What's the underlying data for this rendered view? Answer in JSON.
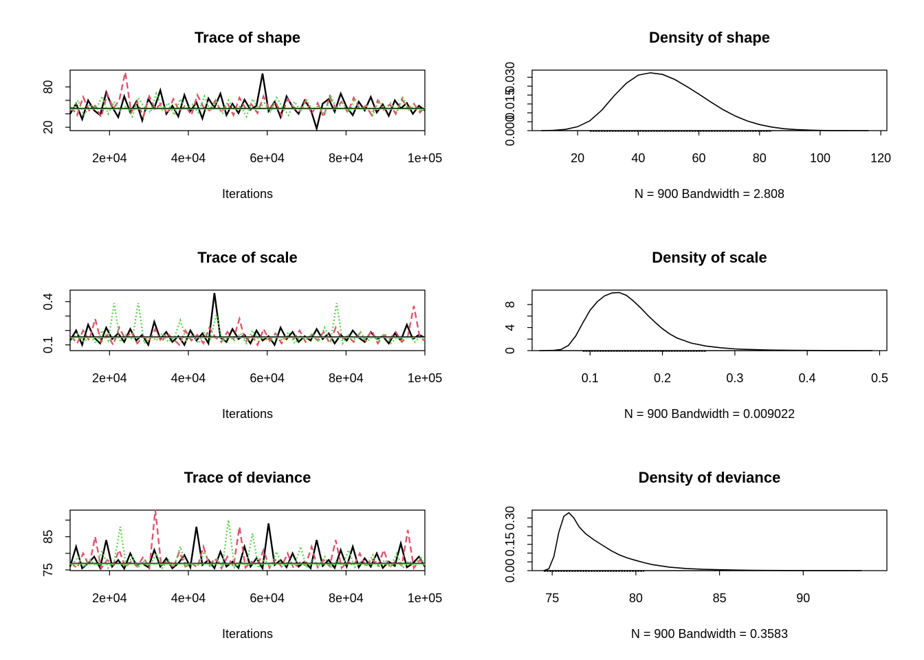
{
  "chart_data": [
    {
      "type": "line",
      "title": "Trace of shape",
      "xlabel": "Iterations",
      "xlim": [
        10000,
        100000
      ],
      "ylim": [
        15,
        105
      ],
      "xticks": [
        20000,
        40000,
        60000,
        80000,
        100000
      ],
      "xtick_labels": [
        "2e+04",
        "4e+04",
        "6e+04",
        "8e+04",
        "1e+05"
      ],
      "yticks": [
        20,
        40,
        60,
        80
      ],
      "ytick_labels": [
        "20",
        "",
        "",
        "80"
      ],
      "mean": 48,
      "series": [
        {
          "color": "#000000",
          "style": "solid",
          "values": [
            40,
            55,
            32,
            60,
            45,
            38,
            72,
            50,
            35,
            66,
            42,
            58,
            30,
            62,
            48,
            75,
            40,
            52,
            36,
            68,
            44,
            57,
            33,
            63,
            49,
            70,
            38,
            55,
            41,
            61,
            46,
            52,
            100,
            44,
            58,
            35,
            66,
            50,
            40,
            60,
            47,
            18,
            55,
            62,
            43,
            70,
            50,
            38,
            58,
            45,
            65,
            42,
            54,
            37,
            60,
            48,
            56,
            40,
            52,
            45
          ]
        },
        {
          "color": "#DF536B",
          "style": "dashed",
          "values": [
            50,
            38,
            65,
            45,
            52,
            35,
            70,
            48,
            60,
            102,
            42,
            58,
            36,
            66,
            47,
            55,
            40,
            62,
            44,
            52,
            38,
            68,
            50,
            45,
            60,
            42,
            56,
            38,
            64,
            48,
            54,
            41,
            66,
            46,
            58,
            37,
            62,
            50,
            44,
            60,
            40,
            56,
            35,
            66,
            48,
            58,
            42,
            64,
            46,
            52,
            38,
            60,
            46,
            54,
            40,
            62,
            48,
            55,
            42,
            50
          ]
        },
        {
          "color": "#61D04F",
          "style": "dotted",
          "values": [
            45,
            60,
            38,
            54,
            48,
            66,
            40,
            58,
            44,
            52,
            36,
            64,
            50,
            42,
            70,
            46,
            56,
            38,
            62,
            48,
            54,
            42,
            66,
            44,
            58,
            40,
            60,
            46,
            52,
            36,
            62,
            48,
            56,
            42,
            64,
            50,
            38,
            58,
            44,
            60,
            46,
            52,
            40,
            66,
            48,
            56,
            42,
            62,
            46,
            54,
            38,
            60,
            48,
            56,
            42,
            64,
            46,
            52,
            44,
            50
          ]
        }
      ]
    },
    {
      "type": "area",
      "title": "Density of shape",
      "xlabel": "N = 900   Bandwidth = 2.808",
      "xlim": [
        5,
        122
      ],
      "ylim": [
        0,
        0.034
      ],
      "xticks": [
        20,
        40,
        60,
        80,
        100,
        120
      ],
      "xtick_labels": [
        "20",
        "40",
        "60",
        "80",
        "100",
        "120"
      ],
      "yticks": [
        0,
        0.005,
        0.01,
        0.015,
        0.02,
        0.025,
        0.03
      ],
      "ytick_labels": [
        "0.000",
        "",
        "",
        "0.015",
        "",
        "",
        "0.030"
      ],
      "x": [
        8,
        12,
        16,
        20,
        24,
        28,
        32,
        36,
        40,
        44,
        48,
        52,
        56,
        60,
        64,
        68,
        72,
        76,
        80,
        84,
        88,
        92,
        96,
        100,
        104,
        108,
        112,
        116
      ],
      "values": [
        0,
        0.0002,
        0.0007,
        0.0022,
        0.0055,
        0.0115,
        0.0195,
        0.0265,
        0.0312,
        0.0325,
        0.0316,
        0.0288,
        0.0248,
        0.0205,
        0.016,
        0.0118,
        0.0082,
        0.0054,
        0.0034,
        0.002,
        0.0011,
        0.0006,
        0.0003,
        0.0001,
        5e-05,
        2e-05,
        1e-05,
        0
      ]
    },
    {
      "type": "line",
      "title": "Trace of scale",
      "xlabel": "Iterations",
      "xlim": [
        10000,
        100000
      ],
      "ylim": [
        0.06,
        0.48
      ],
      "xticks": [
        20000,
        40000,
        60000,
        80000,
        100000
      ],
      "xtick_labels": [
        "2e+04",
        "4e+04",
        "6e+04",
        "8e+04",
        "1e+05"
      ],
      "yticks": [
        0.1,
        0.2,
        0.3,
        0.4
      ],
      "ytick_labels": [
        "0.1",
        "",
        "",
        "0.4"
      ],
      "mean": 0.155,
      "series": [
        {
          "color": "#000000",
          "style": "solid",
          "values": [
            0.13,
            0.2,
            0.1,
            0.24,
            0.15,
            0.11,
            0.22,
            0.14,
            0.18,
            0.12,
            0.21,
            0.13,
            0.17,
            0.1,
            0.26,
            0.14,
            0.19,
            0.12,
            0.16,
            0.1,
            0.2,
            0.13,
            0.18,
            0.11,
            0.46,
            0.15,
            0.12,
            0.21,
            0.14,
            0.17,
            0.11,
            0.2,
            0.13,
            0.16,
            0.1,
            0.22,
            0.14,
            0.19,
            0.12,
            0.16,
            0.13,
            0.21,
            0.14,
            0.18,
            0.11,
            0.17,
            0.13,
            0.2,
            0.15,
            0.12,
            0.19,
            0.14,
            0.16,
            0.11,
            0.18,
            0.13,
            0.24,
            0.14,
            0.17,
            0.15
          ]
        },
        {
          "color": "#DF536B",
          "style": "dashed",
          "values": [
            0.16,
            0.11,
            0.2,
            0.13,
            0.28,
            0.12,
            0.17,
            0.1,
            0.22,
            0.14,
            0.19,
            0.11,
            0.16,
            0.13,
            0.21,
            0.12,
            0.18,
            0.14,
            0.1,
            0.2,
            0.13,
            0.17,
            0.11,
            0.22,
            0.15,
            0.12,
            0.19,
            0.14,
            0.28,
            0.12,
            0.17,
            0.1,
            0.21,
            0.13,
            0.18,
            0.11,
            0.16,
            0.14,
            0.2,
            0.12,
            0.17,
            0.13,
            0.19,
            0.11,
            0.22,
            0.14,
            0.16,
            0.12,
            0.18,
            0.13,
            0.2,
            0.11,
            0.17,
            0.14,
            0.19,
            0.12,
            0.16,
            0.37,
            0.15,
            0.13
          ]
        },
        {
          "color": "#61D04F",
          "style": "dotted",
          "values": [
            0.14,
            0.18,
            0.12,
            0.16,
            0.11,
            0.2,
            0.13,
            0.39,
            0.12,
            0.17,
            0.14,
            0.39,
            0.11,
            0.16,
            0.13,
            0.18,
            0.12,
            0.15,
            0.27,
            0.13,
            0.17,
            0.11,
            0.19,
            0.14,
            0.31,
            0.12,
            0.16,
            0.13,
            0.18,
            0.11,
            0.2,
            0.14,
            0.15,
            0.12,
            0.17,
            0.13,
            0.19,
            0.11,
            0.16,
            0.14,
            0.18,
            0.12,
            0.22,
            0.13,
            0.39,
            0.11,
            0.17,
            0.14,
            0.19,
            0.12,
            0.16,
            0.13,
            0.18,
            0.11,
            0.15,
            0.14,
            0.17,
            0.12,
            0.16,
            0.14
          ]
        }
      ]
    },
    {
      "type": "area",
      "title": "Density of scale",
      "xlabel": "N = 900   Bandwidth = 0.009022",
      "xlim": [
        0.02,
        0.51
      ],
      "ylim": [
        0,
        10.5
      ],
      "xticks": [
        0.1,
        0.2,
        0.3,
        0.4,
        0.5
      ],
      "xtick_labels": [
        "0.1",
        "0.2",
        "0.3",
        "0.4",
        "0.5"
      ],
      "yticks": [
        0,
        2,
        4,
        6,
        8
      ],
      "ytick_labels": [
        "0",
        "",
        "4",
        "",
        "8"
      ],
      "x": [
        0.03,
        0.05,
        0.06,
        0.07,
        0.08,
        0.09,
        0.1,
        0.11,
        0.12,
        0.13,
        0.14,
        0.15,
        0.16,
        0.17,
        0.18,
        0.19,
        0.2,
        0.21,
        0.22,
        0.24,
        0.26,
        0.28,
        0.3,
        0.32,
        0.35,
        0.38,
        0.42,
        0.46,
        0.49
      ],
      "values": [
        0,
        0.05,
        0.2,
        0.9,
        2.5,
        4.8,
        7.0,
        8.5,
        9.5,
        10.0,
        10.1,
        9.6,
        8.6,
        7.4,
        6.1,
        4.9,
        3.8,
        2.9,
        2.2,
        1.3,
        0.8,
        0.5,
        0.3,
        0.2,
        0.1,
        0.05,
        0.02,
        0.01,
        0
      ]
    },
    {
      "type": "line",
      "title": "Trace of deviance",
      "xlabel": "Iterations",
      "xlim": [
        10000,
        100000
      ],
      "ylim": [
        74.8,
        93
      ],
      "xticks": [
        20000,
        40000,
        60000,
        80000,
        100000
      ],
      "xtick_labels": [
        "2e+04",
        "4e+04",
        "6e+04",
        "8e+04",
        "1e+05"
      ],
      "yticks": [
        75,
        80,
        85,
        90
      ],
      "ytick_labels": [
        "75",
        "",
        "85",
        ""
      ],
      "mean": 77,
      "series": [
        {
          "color": "#000000",
          "style": "solid",
          "values": [
            76,
            82,
            75.5,
            77,
            79,
            75.6,
            84,
            76,
            78,
            75.4,
            80,
            76.5,
            77,
            75.8,
            81,
            76,
            78.5,
            75.5,
            77,
            79.5,
            75.8,
            88,
            76.5,
            78,
            75.5,
            80.5,
            76,
            77.5,
            75.6,
            82,
            76,
            78.5,
            75.5,
            89,
            76.5,
            78,
            75.8,
            80,
            76,
            77.5,
            75.5,
            84,
            76.2,
            78,
            75.6,
            81,
            76,
            82,
            75.8,
            78.5,
            76,
            80,
            75.6,
            77.5,
            76.2,
            83,
            75.8,
            77,
            79,
            76
          ]
        },
        {
          "color": "#DF536B",
          "style": "dashed",
          "values": [
            77,
            75.6,
            80,
            76.2,
            85,
            75.5,
            78,
            76.5,
            81,
            75.8,
            77.5,
            76,
            79,
            75.5,
            93,
            76.2,
            78,
            75.6,
            80.5,
            76,
            77,
            75.8,
            82,
            76.5,
            78.5,
            75.5,
            79,
            76,
            88,
            75.7,
            77.5,
            76.3,
            81,
            75.6,
            78,
            76,
            80,
            75.5,
            77.2,
            76.4,
            82,
            75.8,
            78,
            76.1,
            84,
            75.6,
            77.5,
            76.2,
            80,
            75.9,
            78.5,
            76,
            81,
            75.7,
            77.8,
            76.3,
            87,
            75.6,
            78,
            76.4
          ]
        },
        {
          "color": "#61D04F",
          "style": "dotted",
          "values": [
            76.5,
            79,
            75.8,
            78,
            76.2,
            81,
            75.6,
            77.5,
            88,
            76,
            79,
            75.7,
            77.8,
            76.4,
            80,
            75.6,
            78,
            76.2,
            82,
            75.9,
            77,
            76.5,
            80.5,
            75.7,
            78.5,
            76,
            90,
            75.8,
            77.5,
            76.3,
            86,
            75.6,
            78,
            76.1,
            80.5,
            75.9,
            77.6,
            76.4,
            82,
            75.7,
            78.2,
            76,
            79,
            75.6,
            77.8,
            76.3,
            81,
            75.8,
            77.4,
            76.2,
            79.5,
            75.9,
            78,
            76.1,
            80,
            75.6,
            77.7,
            76.4,
            79,
            76
          ]
        }
      ]
    },
    {
      "type": "area",
      "title": "Density of deviance",
      "xlabel": "N = 900   Bandwidth = 0.3583",
      "xlim": [
        73.8,
        95
      ],
      "ylim": [
        0,
        0.345
      ],
      "xticks": [
        75,
        80,
        85,
        90
      ],
      "xtick_labels": [
        "75",
        "80",
        "85",
        "90"
      ],
      "yticks": [
        0,
        0.05,
        0.1,
        0.15,
        0.2,
        0.25,
        0.3
      ],
      "ytick_labels": [
        "0.00",
        "",
        "",
        "0.15",
        "",
        "",
        "0.30"
      ],
      "x": [
        74.5,
        74.8,
        75.1,
        75.4,
        75.7,
        76,
        76.3,
        76.6,
        77,
        77.5,
        78,
        78.5,
        79,
        79.5,
        80,
        80.5,
        81,
        82,
        83,
        84,
        85,
        86,
        87,
        88,
        90,
        92,
        93.5
      ],
      "values": [
        0,
        0.01,
        0.08,
        0.22,
        0.31,
        0.33,
        0.3,
        0.25,
        0.21,
        0.175,
        0.145,
        0.115,
        0.09,
        0.072,
        0.058,
        0.045,
        0.034,
        0.02,
        0.012,
        0.008,
        0.005,
        0.003,
        0.002,
        0.001,
        0.0005,
        0.0002,
        0
      ]
    }
  ]
}
